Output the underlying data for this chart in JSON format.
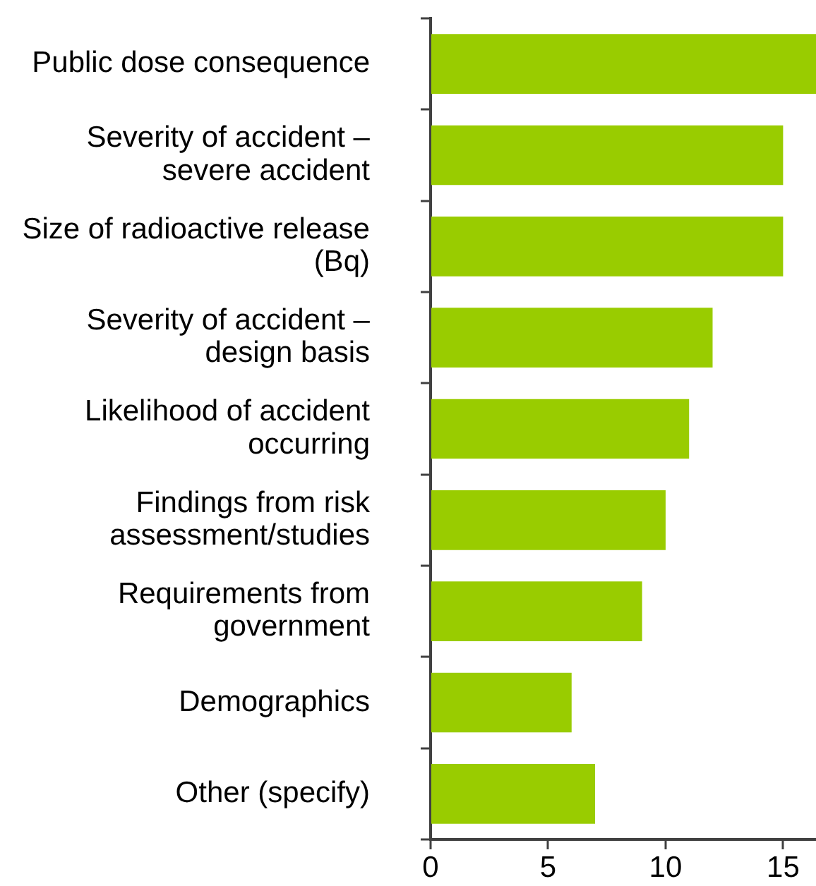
{
  "chart_data": {
    "type": "bar",
    "orientation": "horizontal",
    "categories": [
      "Public dose consequence",
      "Severity of accident – severe accident",
      "Size of radioactive release (Bq)",
      "Severity of accident – design basis",
      "Likelihood of accident occurring",
      "Findings from risk assessment/studies",
      "Requirements from government",
      "Demographics",
      "Other (specify)"
    ],
    "values": [
      16.4,
      15,
      15,
      12,
      11,
      10,
      9,
      6,
      7
    ],
    "color": "#99cc00",
    "xlim": [
      0,
      16.4
    ],
    "xticks": [
      0,
      5,
      10,
      15
    ]
  }
}
